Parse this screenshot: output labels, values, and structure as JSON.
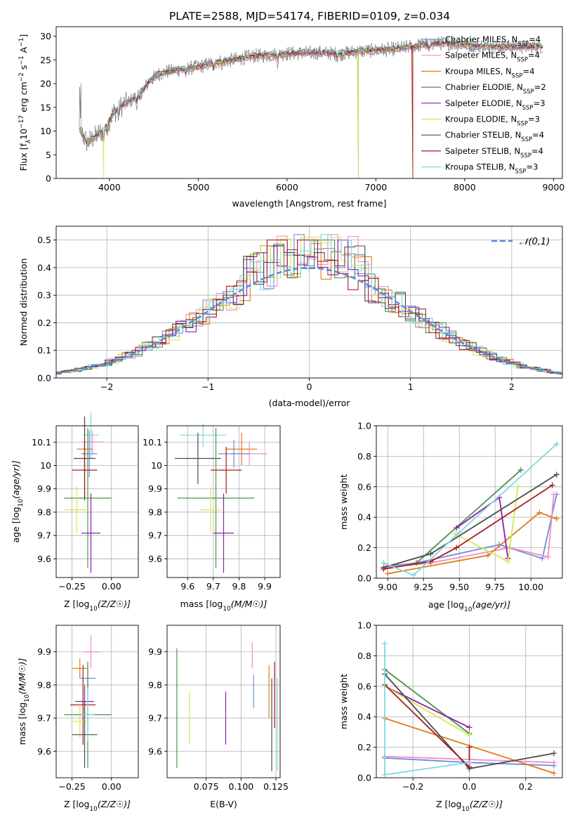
{
  "figure_title": "PLATE=2588, MJD=54174, FIBERID=0109, z=0.034",
  "chart_data": [
    {
      "id": "spectrum",
      "type": "line",
      "title": "PLATE=2588, MJD=54174, FIBERID=0109, z=0.034",
      "xlabel": "wavelength [Angstrom, rest frame]",
      "ylabel_parts": [
        "Flux [f",
        "λ",
        "10",
        "−17",
        " erg cm",
        "−2",
        " s",
        "−1",
        " A",
        "−1",
        "]"
      ],
      "xlim": [
        3400,
        9100
      ],
      "ylim": [
        0,
        32
      ],
      "xticks": [
        4000,
        5000,
        6000,
        7000,
        8000,
        9000
      ],
      "yticks": [
        0,
        5,
        10,
        15,
        20,
        25,
        30
      ],
      "grid": false,
      "legend_position": "right",
      "continuum": {
        "x": [
          3660,
          3750,
          3850,
          3950,
          4050,
          4150,
          4250,
          4350,
          4450,
          4550,
          4650,
          4800,
          5000,
          5200,
          5400,
          5600,
          5800,
          6000,
          6200,
          6400,
          6600,
          6800,
          7000,
          7200,
          7400,
          7600,
          7800,
          8000,
          8200,
          8400,
          8600,
          8800
        ],
        "y": [
          10.5,
          7.5,
          9,
          10.5,
          14,
          15.5,
          16.5,
          18,
          20.5,
          22,
          22.5,
          23,
          23.5,
          24.5,
          25,
          25.8,
          26,
          26.3,
          26.5,
          26.5,
          26.3,
          26.8,
          27,
          27.3,
          27.8,
          28.5,
          28.5,
          28.2,
          28,
          27.8,
          27.8,
          27.8
        ]
      },
      "series": [
        {
          "name": "Chabrier MILES, N",
          "sub": "SSP",
          "suffix": "=4",
          "color": "#6d8fd6"
        },
        {
          "name": "Salpeter MILES, N",
          "sub": "SSP",
          "suffix": "=4",
          "color": "#f28bc5"
        },
        {
          "name": "Kroupa MILES, N",
          "sub": "SSP",
          "suffix": "=4",
          "color": "#e07b1a"
        },
        {
          "name": "Chabrier ELODIE, N",
          "sub": "SSP",
          "suffix": "=2",
          "color": "#4f8f4f"
        },
        {
          "name": "Salpeter ELODIE, N",
          "sub": "SSP",
          "suffix": "=3",
          "color": "#8c1fa8"
        },
        {
          "name": "Kroupa ELODIE, N",
          "sub": "SSP",
          "suffix": "=3",
          "color": "#d6e65a"
        },
        {
          "name": "Chabrier STELIB, N",
          "sub": "SSP",
          "suffix": "=4",
          "color": "#4a4a4a"
        },
        {
          "name": "Salpeter STELIB, N",
          "sub": "SSP",
          "suffix": "=4",
          "color": "#a81c1c"
        },
        {
          "name": "Kroupa STELIB, N",
          "sub": "SSP",
          "suffix": "=3",
          "color": "#7fd9de"
        }
      ],
      "cutoffs": [
        {
          "series": 5,
          "x": 6800
        },
        {
          "series": 3,
          "x": 6800
        },
        {
          "series": 2,
          "x": 7420
        },
        {
          "series": 7,
          "x": 7420
        },
        {
          "series": 5,
          "x": 3935
        }
      ]
    },
    {
      "id": "residuals",
      "type": "line",
      "xlabel": "(data-model)/error",
      "ylabel": "Normed distribution",
      "xlim": [
        -2.5,
        2.5
      ],
      "ylim": [
        0,
        0.55
      ],
      "xticks": [
        -2,
        -1,
        0,
        1,
        2
      ],
      "xticklabels": [
        "−2",
        "−1",
        "0",
        "1",
        "2"
      ],
      "yticks": [
        0.0,
        0.1,
        0.2,
        0.3,
        0.4,
        0.5
      ],
      "yticklabels": [
        "0.0",
        "0.1",
        "0.2",
        "0.3",
        "0.4",
        "0.5"
      ],
      "grid": true,
      "legend_position": "top-right",
      "reference": {
        "label": "𝒩(0,1)",
        "color": "#5b8ed6"
      },
      "bin_edges_from": -2.5,
      "bin_width": 0.1,
      "series_colors": [
        "#6d8fd6",
        "#f28bc5",
        "#e07b1a",
        "#4f8f4f",
        "#8c1fa8",
        "#d6e65a",
        "#4a4a4a",
        "#a81c1c",
        "#7fd9de"
      ],
      "max_values": [
        0.52,
        0.52,
        0.52,
        0.5,
        0.5,
        0.51,
        0.48,
        0.5,
        0.52
      ]
    },
    {
      "id": "z-age",
      "type": "scatter",
      "xlabel": "Z [log10(Z/Z☉)]",
      "ylabel": "age  [log10(age/yr)]",
      "xlim": [
        -0.35,
        0.17
      ],
      "ylim": [
        9.52,
        10.17
      ],
      "xticks": [
        -0.25,
        0.0
      ],
      "xticklabels": [
        "−0.25",
        "0.00"
      ],
      "yticks": [
        9.6,
        9.7,
        9.8,
        9.9,
        10.0,
        10.1
      ],
      "grid": true,
      "points": [
        {
          "x": -0.13,
          "y": 10.13,
          "xerr": 0.05,
          "yerr": 0.1,
          "color": "#7fd9de"
        },
        {
          "x": -0.12,
          "y": 10.1,
          "xerr": 0.07,
          "yerr": 0.05,
          "color": "#f28bc5"
        },
        {
          "x": -0.17,
          "y": 10.07,
          "xerr": 0.05,
          "yerr": 0.12,
          "color": "#e07b1a"
        },
        {
          "x": -0.14,
          "y": 10.05,
          "xerr": 0.05,
          "yerr": 0.1,
          "color": "#6d8fd6"
        },
        {
          "x": -0.17,
          "y": 10.03,
          "xerr": 0.07,
          "yerr": 0.18,
          "color": "#4a4a4a"
        },
        {
          "x": -0.17,
          "y": 9.98,
          "xerr": 0.08,
          "yerr": 0.12,
          "color": "#a81c1c"
        },
        {
          "x": -0.15,
          "y": 9.86,
          "xerr": 0.15,
          "yerr": 0.3,
          "color": "#4f8f4f"
        },
        {
          "x": -0.22,
          "y": 9.81,
          "xerr": 0.08,
          "yerr": 0.1,
          "color": "#d6e65a"
        },
        {
          "x": -0.13,
          "y": 9.71,
          "xerr": 0.06,
          "yerr": 0.17,
          "color": "#8c1fa8"
        }
      ]
    },
    {
      "id": "mass-age",
      "type": "scatter",
      "xlabel": "mass [log10(M/M☉)]",
      "ylabel": "",
      "xlim": [
        9.52,
        9.96
      ],
      "ylim": [
        9.52,
        10.17
      ],
      "xticks": [
        9.6,
        9.7,
        9.8,
        9.9
      ],
      "xticklabels": [
        "9.6",
        "9.7",
        "9.8",
        "9.9"
      ],
      "yticks": [
        9.6,
        9.7,
        9.8,
        9.9,
        10.0,
        10.1
      ],
      "grid": true,
      "points": [
        {
          "x": 9.66,
          "y": 10.13,
          "xerr": 0.09,
          "yerr": 0.05,
          "color": "#7fd9de"
        },
        {
          "x": 9.84,
          "y": 10.05,
          "xerr": 0.07,
          "yerr": 0.05,
          "color": "#f28bc5"
        },
        {
          "x": 9.81,
          "y": 10.07,
          "xerr": 0.06,
          "yerr": 0.07,
          "color": "#e07b1a"
        },
        {
          "x": 9.78,
          "y": 10.05,
          "xerr": 0.06,
          "yerr": 0.06,
          "color": "#6d8fd6"
        },
        {
          "x": 9.64,
          "y": 10.03,
          "xerr": 0.09,
          "yerr": 0.11,
          "color": "#4a4a4a"
        },
        {
          "x": 9.75,
          "y": 9.98,
          "xerr": 0.06,
          "yerr": 0.1,
          "color": "#a81c1c"
        },
        {
          "x": 9.71,
          "y": 9.86,
          "xerr": 0.15,
          "yerr": 0.3,
          "color": "#4f8f4f"
        },
        {
          "x": 9.69,
          "y": 9.81,
          "xerr": 0.04,
          "yerr": 0.1,
          "color": "#d6e65a"
        },
        {
          "x": 9.74,
          "y": 9.71,
          "xerr": 0.04,
          "yerr": 0.17,
          "color": "#8c1fa8"
        }
      ]
    },
    {
      "id": "age-weight",
      "type": "line",
      "xlabel": "age  [log10(age/yr)]",
      "ylabel": "mass weight",
      "xlim": [
        8.92,
        10.22
      ],
      "ylim": [
        0,
        1
      ],
      "xticks": [
        9.0,
        9.25,
        9.5,
        9.75,
        10.0
      ],
      "xticklabels": [
        "9.00",
        "9.25",
        "9.50",
        "9.75",
        "10.00"
      ],
      "yticks": [
        0.0,
        0.2,
        0.4,
        0.6,
        0.8,
        1.0
      ],
      "grid": true,
      "series": [
        {
          "color": "#6d8fd6",
          "x": [
            9.0,
            9.2,
            9.78,
            10.08,
            10.18
          ],
          "y": [
            0.08,
            0.1,
            0.22,
            0.13,
            0.55
          ]
        },
        {
          "color": "#f28bc5",
          "x": [
            8.98,
            9.3,
            9.85,
            10.12,
            10.16
          ],
          "y": [
            0.07,
            0.1,
            0.2,
            0.14,
            0.55
          ]
        },
        {
          "color": "#e07b1a",
          "x": [
            9.0,
            9.7,
            10.06,
            10.18
          ],
          "y": [
            0.03,
            0.15,
            0.43,
            0.39
          ]
        },
        {
          "color": "#4f8f4f",
          "x": [
            9.2,
            9.93
          ],
          "y": [
            0.1,
            0.71
          ]
        },
        {
          "color": "#8c1fa8",
          "x": [
            9.48,
            9.78,
            9.84
          ],
          "y": [
            0.33,
            0.53,
            0.13
          ]
        },
        {
          "color": "#d6e65a",
          "x": [
            9.47,
            9.84,
            9.91
          ],
          "y": [
            0.29,
            0.11,
            0.6
          ]
        },
        {
          "color": "#4a4a4a",
          "x": [
            8.97,
            9.3,
            10.18
          ],
          "y": [
            0.07,
            0.16,
            0.68
          ]
        },
        {
          "color": "#a81c1c",
          "x": [
            8.97,
            9.3,
            9.48,
            10.15
          ],
          "y": [
            0.06,
            0.11,
            0.2,
            0.61
          ]
        },
        {
          "color": "#7fd9de",
          "x": [
            8.97,
            9.18,
            9.5,
            10.18
          ],
          "y": [
            0.1,
            0.02,
            0.3,
            0.88
          ]
        }
      ]
    },
    {
      "id": "z-mass",
      "type": "scatter",
      "xlabel": "Z [log10(Z/Z☉)]",
      "ylabel": "mass [log10(M/M☉)]",
      "xlim": [
        -0.35,
        0.17
      ],
      "ylim": [
        9.52,
        9.98
      ],
      "xticks": [
        -0.25,
        0.0
      ],
      "xticklabels": [
        "−0.25",
        "0.00"
      ],
      "yticks": [
        9.6,
        9.7,
        9.8,
        9.9
      ],
      "grid": true,
      "points": [
        {
          "x": -0.13,
          "y": 9.9,
          "xerr": 0.05,
          "yerr": 0.05,
          "color": "#f28bc5"
        },
        {
          "x": -0.2,
          "y": 9.85,
          "xerr": 0.05,
          "yerr": 0.03,
          "color": "#e07b1a"
        },
        {
          "x": -0.15,
          "y": 9.82,
          "xerr": 0.05,
          "yerr": 0.04,
          "color": "#6d8fd6"
        },
        {
          "x": -0.17,
          "y": 9.75,
          "xerr": 0.06,
          "yerr": 0.05,
          "color": "#8c1fa8"
        },
        {
          "x": -0.18,
          "y": 9.74,
          "xerr": 0.08,
          "yerr": 0.12,
          "color": "#a81c1c"
        },
        {
          "x": -0.15,
          "y": 9.71,
          "xerr": 0.15,
          "yerr": 0.16,
          "color": "#4f8f4f"
        },
        {
          "x": -0.2,
          "y": 9.69,
          "xerr": 0.06,
          "yerr": 0.05,
          "color": "#d6e65a"
        },
        {
          "x": -0.17,
          "y": 9.65,
          "xerr": 0.08,
          "yerr": 0.1,
          "color": "#4a4a4a"
        },
        {
          "x": -0.15,
          "y": 9.71,
          "xerr": 0.04,
          "yerr": 0.08,
          "color": "#7fd9de"
        }
      ]
    },
    {
      "id": "ebv-mass",
      "type": "scatter",
      "xlabel": "E(B-V)",
      "ylabel": "",
      "xlim": [
        0.047,
        0.128
      ],
      "ylim": [
        9.52,
        9.98
      ],
      "xticks": [
        0.075,
        0.1,
        0.125
      ],
      "xticklabels": [
        "0.075",
        "0.100",
        "0.125"
      ],
      "yticks": [
        9.6,
        9.7,
        9.8,
        9.9
      ],
      "grid": true,
      "points": [
        {
          "x": 0.054,
          "y": 9.73,
          "yerr": 0.18,
          "color": "#4f8f4f"
        },
        {
          "x": 0.063,
          "y": 9.7,
          "yerr": 0.08,
          "color": "#d6e65a"
        },
        {
          "x": 0.089,
          "y": 9.7,
          "yerr": 0.08,
          "color": "#8c1fa8"
        },
        {
          "x": 0.108,
          "y": 9.89,
          "yerr": 0.04,
          "color": "#f28bc5"
        },
        {
          "x": 0.109,
          "y": 9.78,
          "yerr": 0.05,
          "color": "#6d8fd6"
        },
        {
          "x": 0.12,
          "y": 9.78,
          "yerr": 0.08,
          "color": "#e07b1a"
        },
        {
          "x": 0.122,
          "y": 9.68,
          "yerr": 0.14,
          "color": "#4a4a4a"
        },
        {
          "x": 0.124,
          "y": 9.77,
          "yerr": 0.1,
          "color": "#a81c1c"
        },
        {
          "x": 0.126,
          "y": 9.68,
          "yerr": 0.14,
          "color": "#7fd9de"
        }
      ]
    },
    {
      "id": "z-weight",
      "type": "line",
      "xlabel": "Z [log10(Z/Z☉)]",
      "ylabel": "mass weight",
      "xlim": [
        -0.33,
        0.33
      ],
      "ylim": [
        0,
        1
      ],
      "xticks": [
        -0.2,
        0.0,
        0.2
      ],
      "xticklabels": [
        "−0.2",
        "0.0",
        "0.2"
      ],
      "yticks": [
        0.0,
        0.2,
        0.4,
        0.6,
        0.8,
        1.0
      ],
      "grid": true,
      "series": [
        {
          "color": "#6d8fd6",
          "x": [
            -0.3,
            0.0,
            0.3
          ],
          "y": [
            0.13,
            0.1,
            0.08
          ]
        },
        {
          "color": "#f28bc5",
          "x": [
            -0.3,
            0.0,
            0.3
          ],
          "y": [
            0.14,
            0.12,
            0.1
          ]
        },
        {
          "color": "#e07b1a",
          "x": [
            -0.3,
            0.3
          ],
          "y": [
            0.39,
            0.03
          ]
        },
        {
          "color": "#4f8f4f",
          "x": [
            -0.3,
            0.0
          ],
          "y": [
            0.71,
            0.29
          ]
        },
        {
          "color": "#8c1fa8",
          "x": [
            -0.3,
            0.0
          ],
          "y": [
            0.6,
            0.33
          ]
        },
        {
          "color": "#d6e65a",
          "x": [
            -0.3,
            0.0
          ],
          "y": [
            0.6,
            0.28
          ]
        },
        {
          "color": "#4a4a4a",
          "x": [
            -0.3,
            0.0,
            0.3
          ],
          "y": [
            0.68,
            0.06,
            0.16
          ]
        },
        {
          "color": "#a81c1c",
          "x": [
            -0.3,
            0.0,
            0.0
          ],
          "y": [
            0.61,
            0.07,
            0.2
          ]
        },
        {
          "color": "#7fd9de",
          "x": [
            -0.3,
            -0.3,
            0.0
          ],
          "y": [
            0.88,
            0.02,
            0.1
          ]
        }
      ]
    }
  ]
}
